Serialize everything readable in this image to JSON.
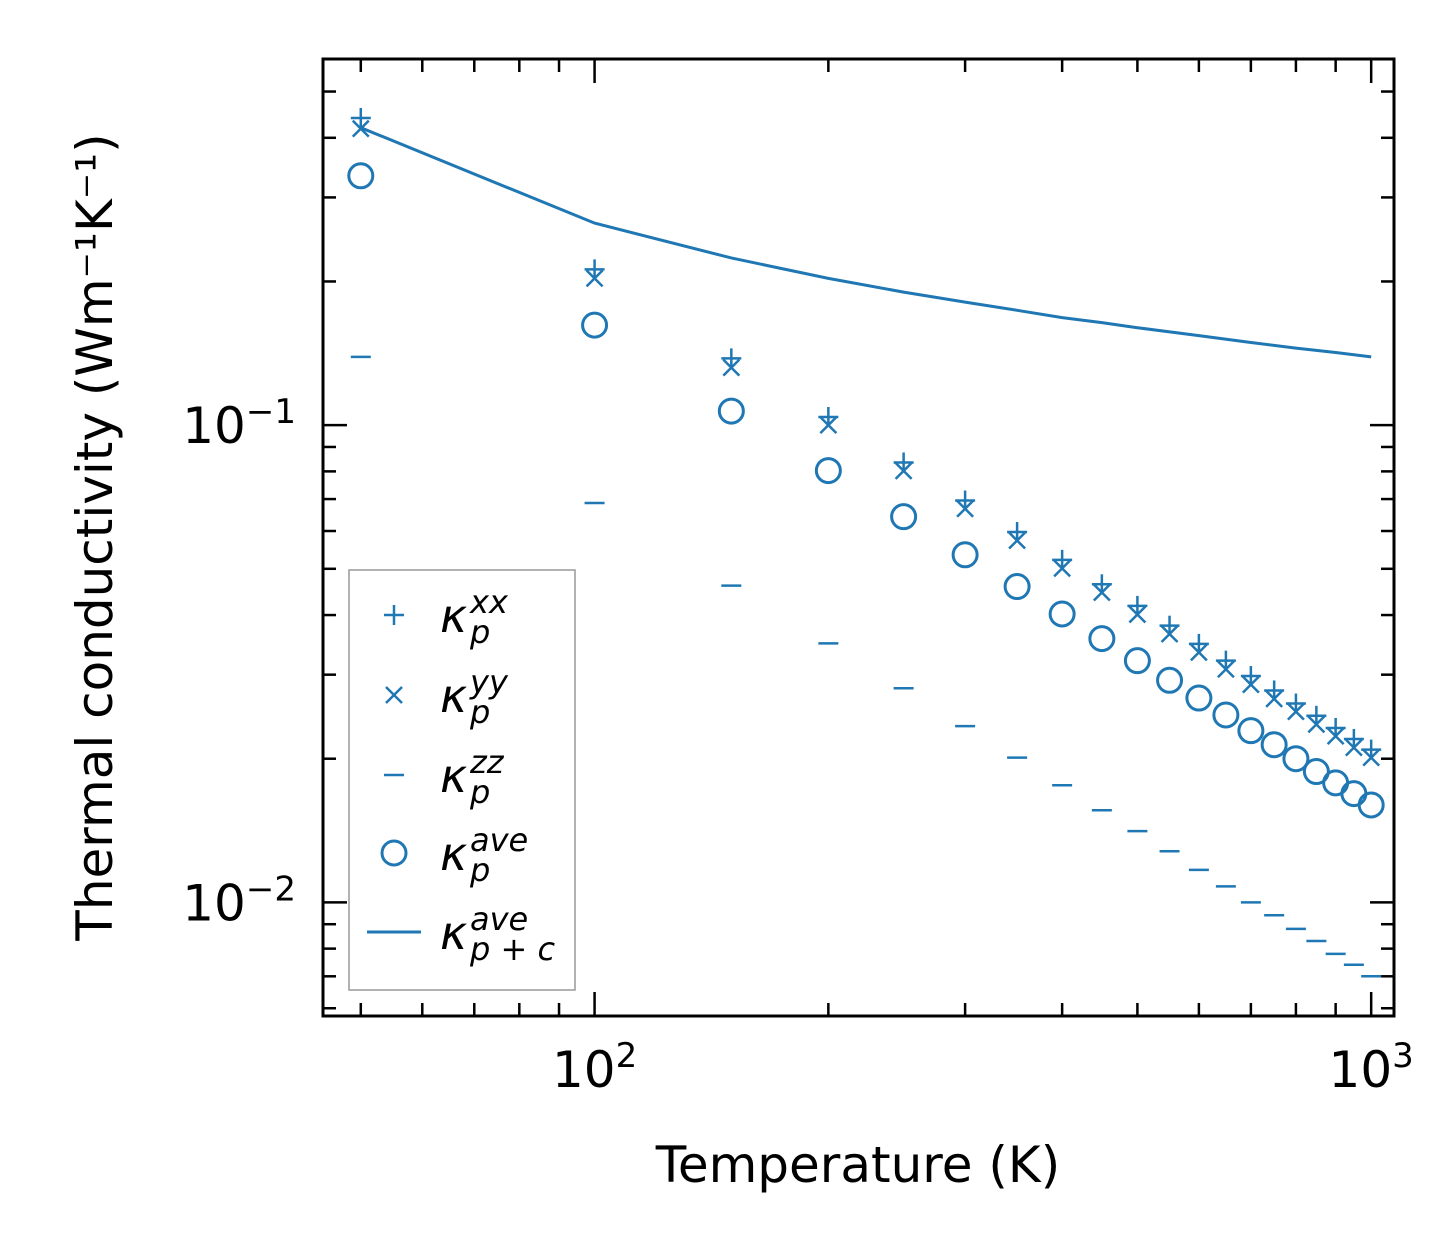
{
  "chart_data": {
    "type": "scatter",
    "scale": {
      "x": "log",
      "y": "log"
    },
    "xlabel": "Temperature (K)",
    "ylabel": "Thermal conductivity (Wm⁻¹K⁻¹)",
    "xlim": [
      44.7,
      1070
    ],
    "ylim": [
      0.00578,
      0.585
    ],
    "xticks": [
      {
        "value": 100,
        "base": "10",
        "exp": "2"
      },
      {
        "value": 1000,
        "base": "10",
        "exp": "3"
      }
    ],
    "yticks": [
      {
        "value": 0.01,
        "base": "10",
        "exp": "−2"
      },
      {
        "value": 0.1,
        "base": "10",
        "exp": "−1"
      }
    ],
    "color": "#1f77b4",
    "x": [
      50,
      100,
      150,
      200,
      250,
      300,
      350,
      400,
      450,
      500,
      550,
      600,
      650,
      700,
      750,
      800,
      850,
      900,
      950,
      1000
    ],
    "series": [
      {
        "name": "kxx",
        "marker": "plus",
        "label": {
          "base": "κ",
          "sub": "p",
          "sup": "xx"
        },
        "values": [
          0.44,
          0.212,
          0.138,
          0.104,
          0.0835,
          0.0695,
          0.0597,
          0.0522,
          0.0464,
          0.0418,
          0.038,
          0.0348,
          0.0321,
          0.0298,
          0.0278,
          0.0261,
          0.0246,
          0.0232,
          0.022,
          0.0209
        ]
      },
      {
        "name": "kyy",
        "marker": "x",
        "label": {
          "base": "κ",
          "sub": "p",
          "sup": "yy"
        },
        "values": [
          0.418,
          0.203,
          0.132,
          0.1,
          0.0802,
          0.0668,
          0.0573,
          0.0501,
          0.0446,
          0.0401,
          0.0365,
          0.0334,
          0.0308,
          0.0286,
          0.0267,
          0.0251,
          0.0236,
          0.0223,
          0.0211,
          0.0201
        ]
      },
      {
        "name": "kzz",
        "marker": "hline",
        "label": {
          "base": "κ",
          "sub": "p",
          "sup": "zz"
        },
        "values": [
          0.139,
          0.0687,
          0.0461,
          0.0349,
          0.0281,
          0.0234,
          0.0201,
          0.0176,
          0.0156,
          0.0141,
          0.0128,
          0.0117,
          0.0108,
          0.01,
          0.0094,
          0.0088,
          0.0083,
          0.0078,
          0.0074,
          0.007
        ]
      },
      {
        "name": "kave",
        "marker": "circle",
        "label": {
          "base": "κ",
          "sub": "p",
          "sup": "ave"
        },
        "values": [
          0.333,
          0.162,
          0.107,
          0.0803,
          0.0643,
          0.0535,
          0.0459,
          0.0402,
          0.0357,
          0.0321,
          0.0292,
          0.0268,
          0.0247,
          0.0229,
          0.0214,
          0.02,
          0.0188,
          0.0178,
          0.0169,
          0.016
        ]
      },
      {
        "name": "kpc",
        "marker": "line",
        "label": {
          "base": "κ",
          "sub": "p + c",
          "sup": "ave"
        },
        "x": [
          50,
          100,
          150,
          200,
          250,
          300,
          350,
          400,
          450,
          500,
          600,
          700,
          800,
          900,
          1000
        ],
        "values": [
          0.42,
          0.265,
          0.224,
          0.203,
          0.19,
          0.181,
          0.174,
          0.168,
          0.164,
          0.16,
          0.154,
          0.149,
          0.145,
          0.142,
          0.139
        ]
      }
    ],
    "legend": "lower-left"
  }
}
